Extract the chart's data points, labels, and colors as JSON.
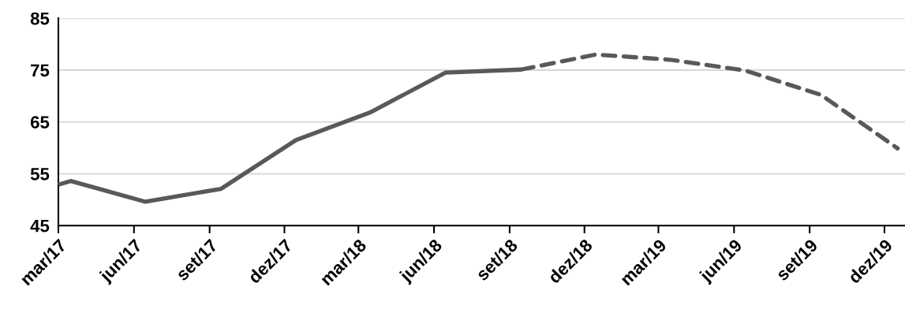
{
  "chart_data": {
    "type": "line",
    "series": [
      {
        "color": "#595959",
        "line_style": "solid",
        "x": [
          "2017-03-01",
          "2017-03-16",
          "2017-06-15",
          "2017-09-15",
          "2017-12-15",
          "2018-03-15",
          "2018-06-15",
          "2018-09-15"
        ],
        "values": [
          52.9,
          53.6,
          49.6,
          52.1,
          61.5,
          66.8,
          74.5,
          75.1
        ]
      },
      {
        "color": "#595959",
        "line_style": "dashed",
        "x": [
          "2018-09-15",
          "2018-12-15",
          "2019-03-15",
          "2019-06-15",
          "2019-09-15",
          "2019-12-17"
        ],
        "values": [
          75.1,
          78.0,
          77.0,
          74.9,
          70.2,
          59.9
        ]
      }
    ],
    "xlim": [
      "2017-03-01",
      "2019-12-26"
    ],
    "xticks": [
      {
        "value": "2017-03-01",
        "label": "mar/17"
      },
      {
        "value": "2017-06-01",
        "label": "jun/17"
      },
      {
        "value": "2017-09-01",
        "label": "set/17"
      },
      {
        "value": "2017-12-01",
        "label": "dez/17"
      },
      {
        "value": "2018-03-01",
        "label": "mar/18"
      },
      {
        "value": "2018-06-01",
        "label": "jun/18"
      },
      {
        "value": "2018-09-01",
        "label": "set/18"
      },
      {
        "value": "2018-12-01",
        "label": "dez/18"
      },
      {
        "value": "2019-03-01",
        "label": "mar/19"
      },
      {
        "value": "2019-06-01",
        "label": "jun/19"
      },
      {
        "value": "2019-09-01",
        "label": "set/19"
      },
      {
        "value": "2019-12-01",
        "label": "dez/19"
      }
    ],
    "ylim": [
      45,
      85
    ],
    "yticks": [
      45,
      55,
      65,
      75,
      85
    ],
    "grid": "y",
    "marker": "none"
  }
}
